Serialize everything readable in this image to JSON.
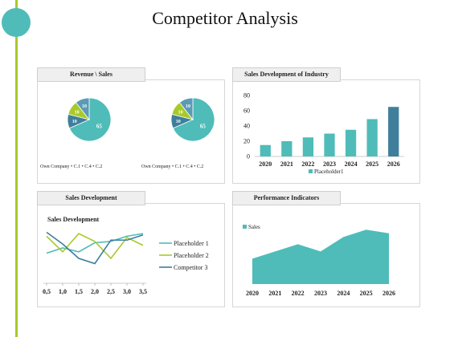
{
  "title": "Competitor Analysis",
  "colors": {
    "teal": "#4fbcb9",
    "olive": "#a9c92b",
    "steel": "#3f7f9b",
    "green_line": "#a9c92b"
  },
  "panels": {
    "revenue": {
      "label": "Revenue \\ Sales"
    },
    "industry": {
      "label": "Sales Development of Industry"
    },
    "development": {
      "label": "Sales Development"
    },
    "performance": {
      "label": "Performance Indicators"
    }
  },
  "chart_data": [
    {
      "type": "pie",
      "panel": "Revenue \\ Sales",
      "charts": [
        {
          "slices": [
            {
              "label": "Own Company",
              "value": 65,
              "shown": "65"
            },
            {
              "label": "C.1",
              "value": 10,
              "shown": "10"
            },
            {
              "label": "C.4",
              "value": 10,
              "shown": "10"
            },
            {
              "label": "C.2",
              "value": 10,
              "shown": "10"
            }
          ]
        },
        {
          "slices": [
            {
              "label": "Own Company",
              "value": 65,
              "shown": "65"
            },
            {
              "label": "C.1",
              "value": 10,
              "shown": "10"
            },
            {
              "label": "C.4",
              "value": 10,
              "shown": "10"
            },
            {
              "label": "C.2",
              "value": 10,
              "shown": "10"
            }
          ]
        }
      ],
      "legend": [
        "Own Company",
        "C.1",
        "C.4",
        "C.2"
      ],
      "legend_row_1": "Own Company • C.1 • C.4 • C.2",
      "legend_row_2": "Own Company • C.1 • C.4 • C.2",
      "colors": [
        "#4fbcb9",
        "#3f7f9b",
        "#a9c92b",
        "#5a9bb5"
      ]
    },
    {
      "type": "bar",
      "panel": "Sales Development of Industry",
      "categories": [
        "2020",
        "2021",
        "2022",
        "2023",
        "2024",
        "2025",
        "2026"
      ],
      "series": [
        {
          "name": "Placeholder1",
          "values": [
            15,
            20,
            25,
            30,
            35,
            49,
            65
          ]
        }
      ],
      "ylim": [
        0,
        80
      ],
      "yticks": [
        "0",
        "20",
        "40",
        "60",
        "80"
      ],
      "highlight_index": 6,
      "legend_position": "bottom"
    },
    {
      "type": "line",
      "panel": "Sales Development",
      "title": "Sales Development",
      "x": [
        "0,5",
        "1,0",
        "1,5",
        "2,0",
        "2,5",
        "3,0",
        "3,5"
      ],
      "series": [
        {
          "name": "Placeholder 1",
          "values": [
            2.0,
            2.4,
            2.1,
            2.8,
            2.9,
            3.3,
            3.5
          ]
        },
        {
          "name": "Placeholder 2",
          "values": [
            3.3,
            2.1,
            3.5,
            2.9,
            1.6,
            3.2,
            2.6
          ]
        },
        {
          "name": "Competitor 3",
          "values": [
            3.6,
            2.7,
            1.6,
            1.2,
            3.0,
            3.0,
            3.4
          ]
        }
      ],
      "ylim": [
        0,
        4
      ],
      "legend_position": "right"
    },
    {
      "type": "area",
      "panel": "Performance Indicators",
      "categories": [
        "2020",
        "2021",
        "2022",
        "2023",
        "2024",
        "2025",
        "2026"
      ],
      "series": [
        {
          "name": "Sales",
          "values": [
            28,
            36,
            44,
            36,
            52,
            60,
            56
          ]
        }
      ],
      "ylim": [
        0,
        70
      ],
      "legend_position": "top-left"
    }
  ]
}
